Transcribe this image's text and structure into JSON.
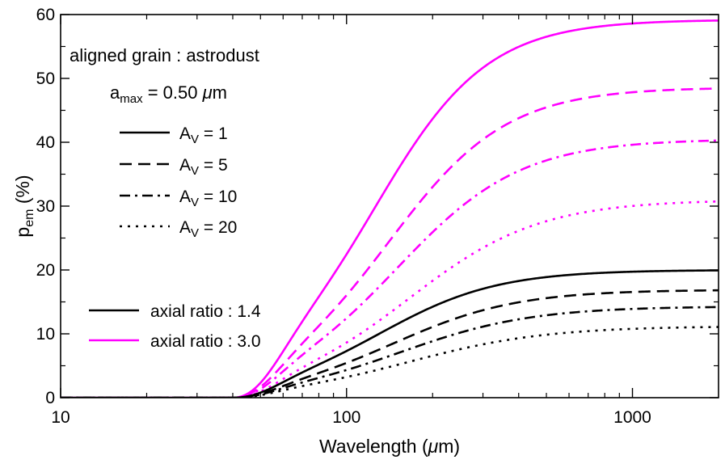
{
  "chart_data": {
    "type": "line",
    "xscale": "log",
    "xlim": [
      10,
      2000
    ],
    "ylim": [
      0,
      60
    ],
    "xlabel_main": "Wavelength (",
    "xlabel_mu": "μ",
    "xlabel_unit": "m)",
    "ylabel_main": "p",
    "ylabel_sub": "em",
    "ylabel_unit": " (%)",
    "x_ticks": [
      {
        "value": 10,
        "label": "10"
      },
      {
        "value": 100,
        "label": "100"
      },
      {
        "value": 1000,
        "label": "1000"
      }
    ],
    "y_ticks": [
      {
        "value": 0,
        "label": "0"
      },
      {
        "value": 10,
        "label": "10"
      },
      {
        "value": 20,
        "label": "20"
      },
      {
        "value": 30,
        "label": "30"
      },
      {
        "value": 40,
        "label": "40"
      },
      {
        "value": 50,
        "label": "50"
      },
      {
        "value": 60,
        "label": "60"
      }
    ],
    "annotation_title": "aligned grain : astrodust",
    "amax": {
      "main": "a",
      "sub": "max",
      "equals": " = 0.50 ",
      "mu": "μ",
      "unit": "m"
    },
    "legend_av": [
      {
        "dash": "solid",
        "main": "A",
        "sub": "V",
        "val": " = 1"
      },
      {
        "dash": "dashed",
        "main": "A",
        "sub": "V",
        "val": " = 5"
      },
      {
        "dash": "dashdot",
        "main": "A",
        "sub": "V",
        "val": " = 10"
      },
      {
        "dash": "dotted",
        "main": "A",
        "sub": "V",
        "val": " = 20"
      }
    ],
    "legend_ratio": [
      {
        "label": "axial ratio : 1.4",
        "color": "#000000"
      },
      {
        "label": "axial ratio : 3.0",
        "color": "#ff00ff"
      }
    ],
    "model": {
      "onset_wavelength": 40
    },
    "series": [
      {
        "name": "axial ratio 3.0, A_V = 1",
        "color": "#ff00ff",
        "dash": "solid",
        "pmax": 59.2,
        "lambda_half": 125,
        "steepness": 2.2
      },
      {
        "name": "axial ratio 3.0, A_V = 5",
        "color": "#ff00ff",
        "dash": "dashed",
        "pmax": 48.6,
        "lambda_half": 140,
        "steepness": 2.1
      },
      {
        "name": "axial ratio 3.0, A_V = 10",
        "color": "#ff00ff",
        "dash": "dashdot",
        "pmax": 40.5,
        "lambda_half": 150,
        "steepness": 2.0
      },
      {
        "name": "axial ratio 3.0, A_V = 20",
        "color": "#ff00ff",
        "dash": "dotted",
        "pmax": 31.0,
        "lambda_half": 165,
        "steepness": 1.9
      },
      {
        "name": "axial ratio 1.4, A_V = 1",
        "color": "#000000",
        "dash": "solid",
        "pmax": 20.0,
        "lambda_half": 130,
        "steepness": 2.1
      },
      {
        "name": "axial ratio 1.4, A_V = 5",
        "color": "#000000",
        "dash": "dashed",
        "pmax": 16.9,
        "lambda_half": 145,
        "steepness": 2.0
      },
      {
        "name": "axial ratio 1.4, A_V = 10",
        "color": "#000000",
        "dash": "dashdot",
        "pmax": 14.3,
        "lambda_half": 155,
        "steepness": 1.9
      },
      {
        "name": "axial ratio 1.4, A_V = 20",
        "color": "#000000",
        "dash": "dotted",
        "pmax": 11.2,
        "lambda_half": 165,
        "steepness": 1.8
      }
    ]
  }
}
